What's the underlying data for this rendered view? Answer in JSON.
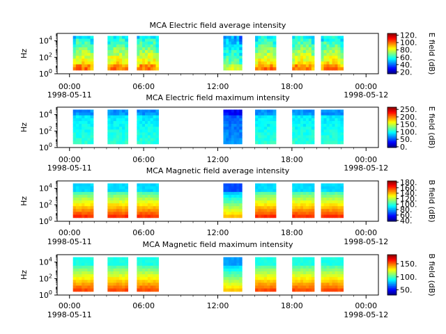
{
  "chart_data": [
    {
      "type": "heatmap",
      "title": "MCA  Electric field average intensity",
      "ylabel": "Hz",
      "y_scale": "log",
      "y_ticks": [
        {
          "base": "10",
          "exp": "0"
        },
        {
          "base": "10",
          "exp": "2"
        },
        {
          "base": "10",
          "exp": "4"
        }
      ],
      "colorbar": {
        "label": "E field (dB)",
        "range": [
          15,
          125
        ],
        "ticks": [
          "20.",
          "40.",
          "60.",
          "80.",
          "100.",
          "120."
        ],
        "tick_values": [
          20,
          40,
          60,
          80,
          100,
          120
        ]
      },
      "intervals_hours": [
        [
          0.28,
          1.92
        ],
        [
          3.08,
          4.72
        ],
        [
          5.45,
          7.2
        ],
        [
          12.45,
          13.95
        ],
        [
          15.02,
          16.7
        ],
        [
          18.02,
          19.8
        ],
        [
          20.35,
          22.15
        ]
      ],
      "style": "avg_e"
    },
    {
      "type": "heatmap",
      "title": "MCA  Electric field maximum intensity",
      "ylabel": "Hz",
      "y_scale": "log",
      "y_ticks": [
        {
          "base": "10",
          "exp": "0"
        },
        {
          "base": "10",
          "exp": "2"
        },
        {
          "base": "10",
          "exp": "4"
        }
      ],
      "colorbar": {
        "label": "E field (dB)",
        "range": [
          -5,
          265
        ],
        "ticks": [
          "0.",
          "50.",
          "100.",
          "150.",
          "200.",
          "250."
        ],
        "tick_values": [
          0,
          50,
          100,
          150,
          200,
          250
        ]
      },
      "intervals_hours": [
        [
          0.28,
          1.92
        ],
        [
          3.08,
          4.72
        ],
        [
          5.45,
          7.2
        ],
        [
          12.45,
          13.95
        ],
        [
          15.02,
          16.7
        ],
        [
          18.02,
          19.8
        ],
        [
          20.35,
          22.15
        ]
      ],
      "style": "max_e"
    },
    {
      "type": "heatmap",
      "title": "MCA  Magnetic field average intensity",
      "ylabel": "Hz",
      "y_scale": "log",
      "y_ticks": [
        {
          "base": "10",
          "exp": "0"
        },
        {
          "base": "10",
          "exp": "2"
        },
        {
          "base": "10",
          "exp": "4"
        }
      ],
      "colorbar": {
        "label": "B field (dB)",
        "range": [
          37,
          185
        ],
        "ticks": [
          "40.",
          "60.",
          "80.",
          "100.",
          "120.",
          "140.",
          "160.",
          "180."
        ],
        "tick_values": [
          40,
          60,
          80,
          100,
          120,
          140,
          160,
          180
        ]
      },
      "intervals_hours": [
        [
          0.28,
          1.92
        ],
        [
          3.08,
          4.72
        ],
        [
          5.45,
          7.2
        ],
        [
          12.45,
          13.95
        ],
        [
          15.02,
          16.7
        ],
        [
          18.02,
          19.8
        ],
        [
          20.35,
          22.15
        ]
      ],
      "style": "avg_b"
    },
    {
      "type": "heatmap",
      "title": "MCA  Magnetic field maximum intensity",
      "ylabel": "Hz",
      "y_scale": "log",
      "y_ticks": [
        {
          "base": "10",
          "exp": "0"
        },
        {
          "base": "10",
          "exp": "2"
        },
        {
          "base": "10",
          "exp": "4"
        }
      ],
      "colorbar": {
        "label": "B field (dB)",
        "range": [
          30,
          185
        ],
        "ticks": [
          "50.",
          "100.",
          "150."
        ],
        "tick_values": [
          50,
          100,
          150
        ]
      },
      "intervals_hours": [
        [
          0.28,
          1.92
        ],
        [
          3.08,
          4.72
        ],
        [
          5.45,
          7.2
        ],
        [
          12.45,
          13.95
        ],
        [
          15.02,
          16.7
        ],
        [
          18.02,
          19.8
        ],
        [
          20.35,
          22.15
        ]
      ],
      "style": "max_b"
    }
  ],
  "x_axis": {
    "range_hours": [
      -1,
      25
    ],
    "major_ticks": [
      {
        "hour": 0,
        "label": "00:00"
      },
      {
        "hour": 6,
        "label": "06:00"
      },
      {
        "hour": 12,
        "label": "12:00"
      },
      {
        "hour": 18,
        "label": "18:00"
      },
      {
        "hour": 24,
        "label": "00:00"
      }
    ],
    "date_labels": [
      {
        "hour": 0,
        "label": "1998-05-11"
      },
      {
        "hour": 24,
        "label": "1998-05-12"
      }
    ]
  },
  "colors": {
    "frame": "#000000",
    "background": "#ffffff"
  }
}
